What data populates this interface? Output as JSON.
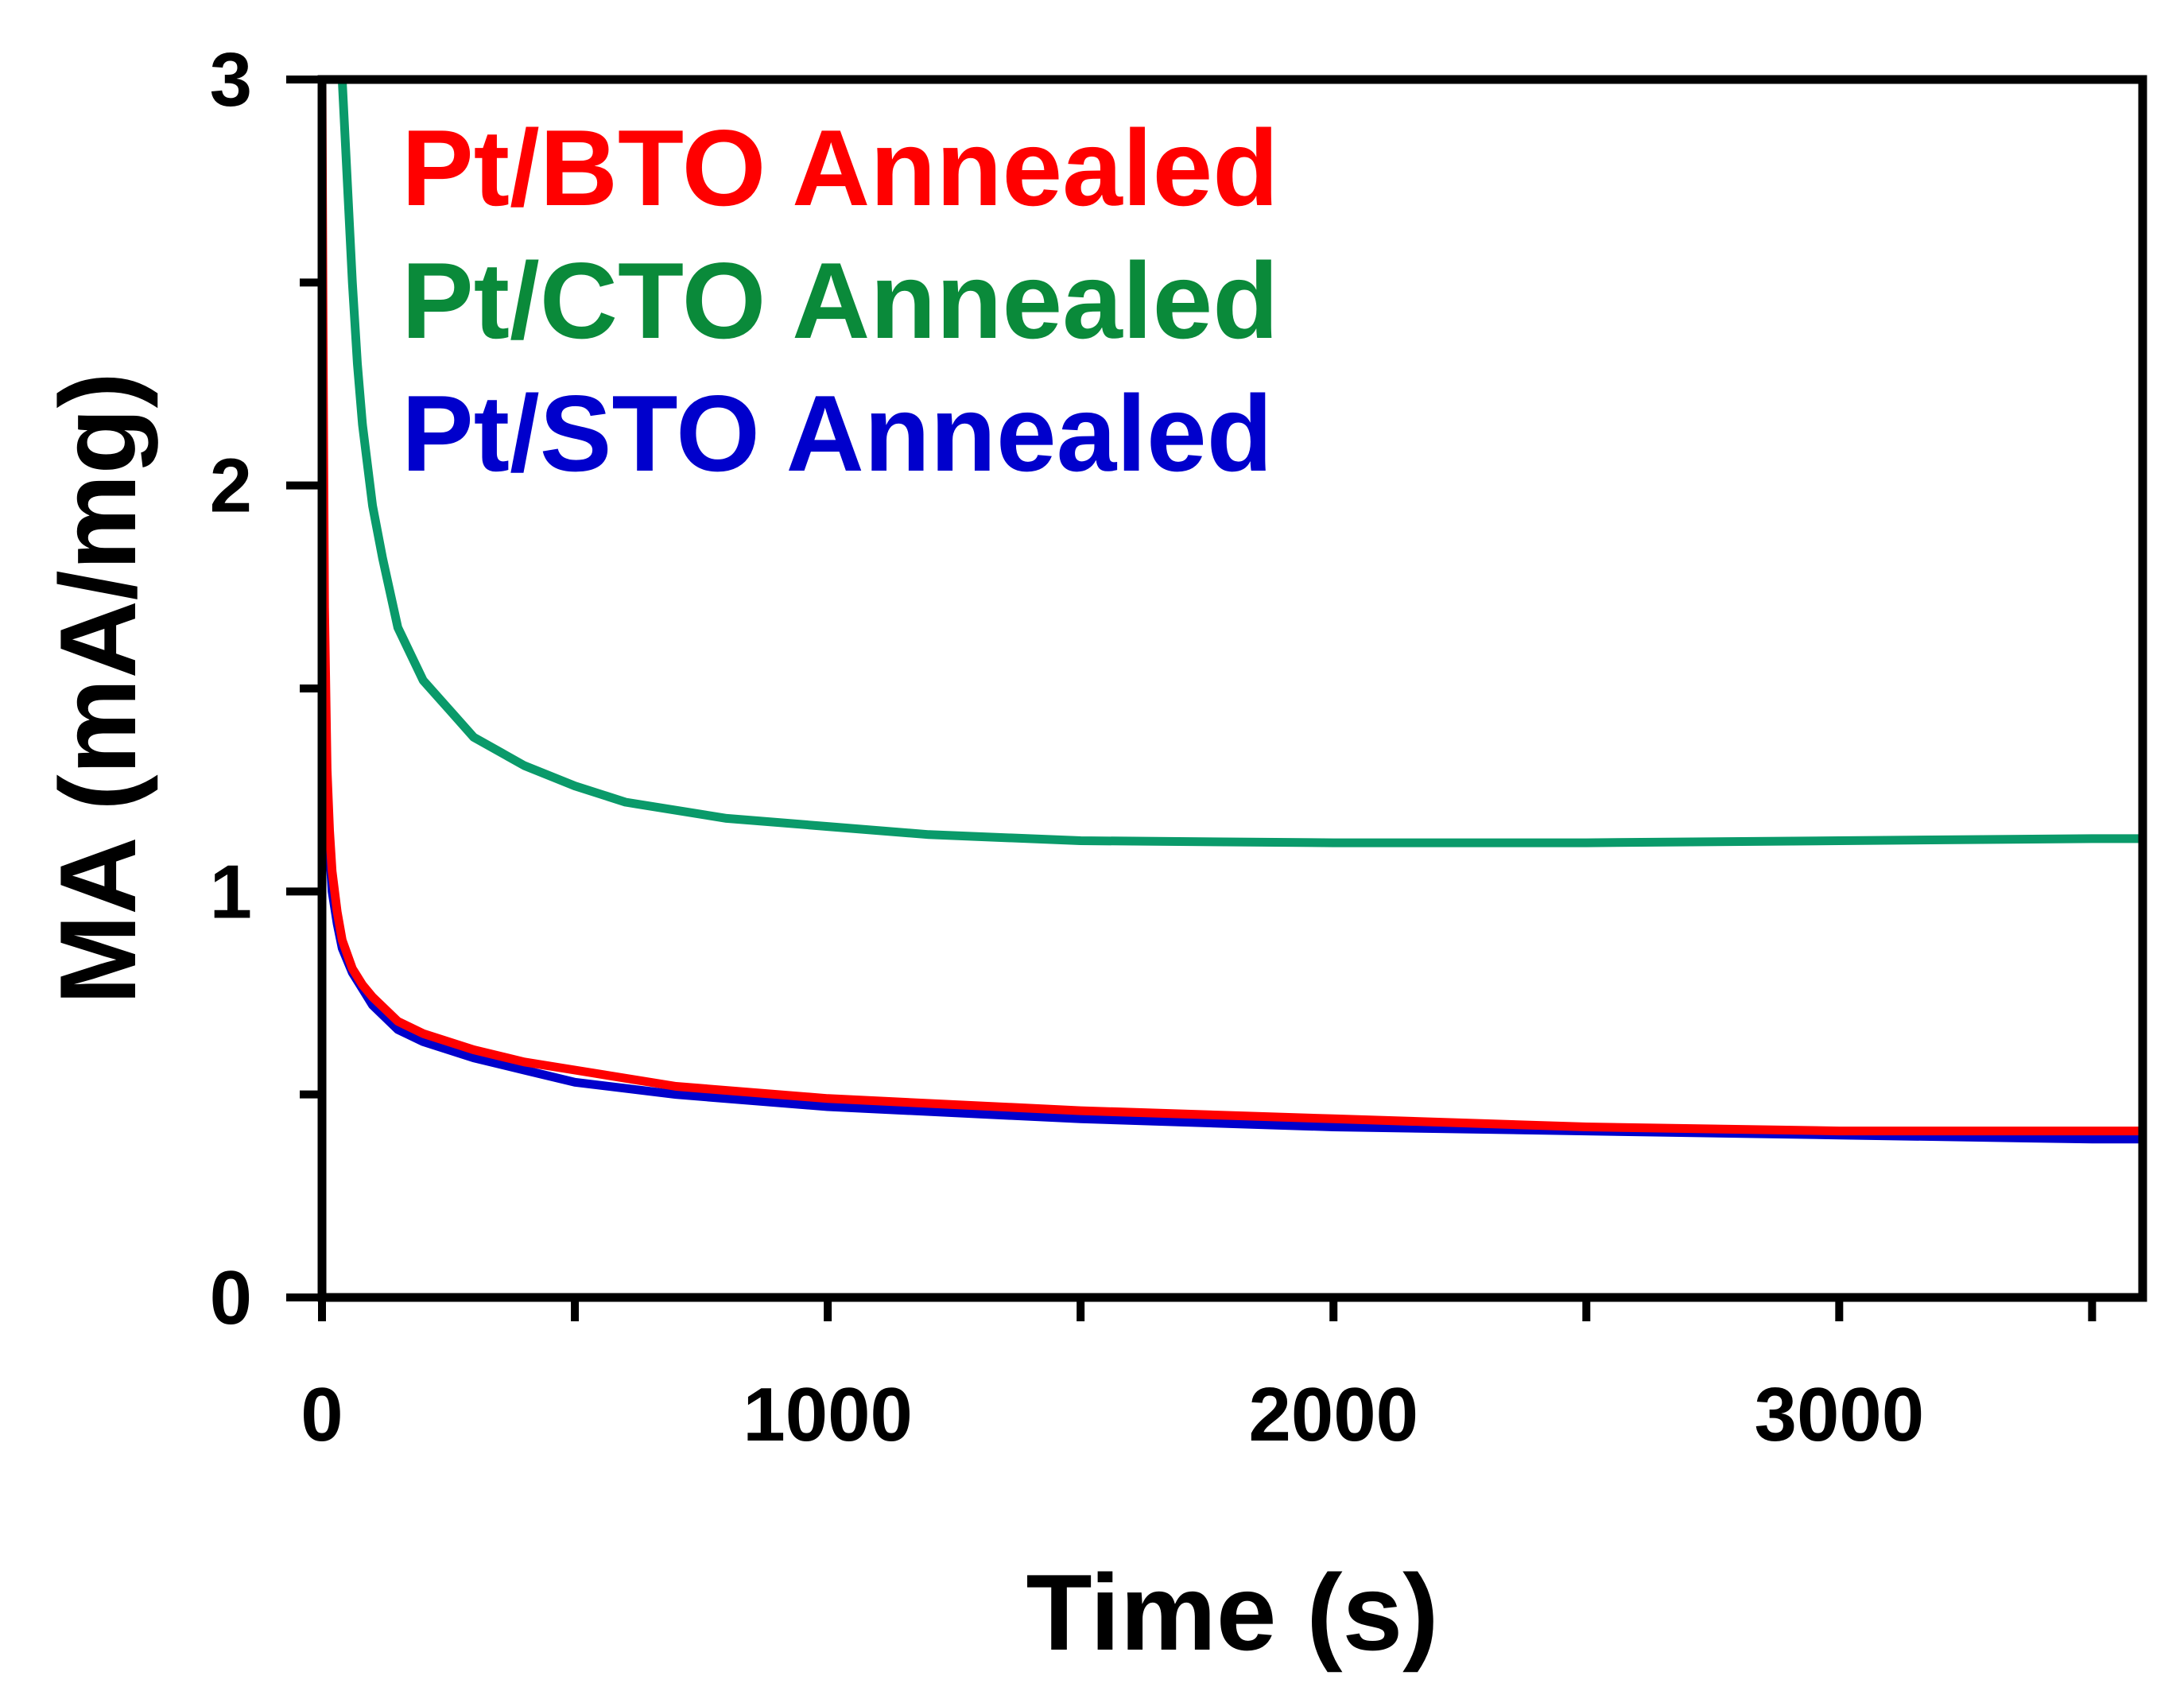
{
  "chart_data": {
    "type": "line",
    "title": "",
    "xlabel": "Time (s)",
    "ylabel": "MA (mA/mg)",
    "xlim": [
      0,
      3600
    ],
    "ylim": [
      0,
      3
    ],
    "x_ticks": [
      0,
      1000,
      2000,
      3000
    ],
    "x_minor_ticks": [
      500,
      1500,
      2500,
      3500
    ],
    "y_ticks": [
      0,
      1,
      2,
      3
    ],
    "y_minor_ticks": [
      0.5,
      1.5,
      2.5
    ],
    "grid": false,
    "legend_position": "top-left",
    "series": [
      {
        "name": "Pt/CTO Annealed",
        "color": "#0A9A6A",
        "x": [
          40,
          50,
          60,
          70,
          80,
          100,
          120,
          150,
          200,
          250,
          300,
          400,
          500,
          600,
          800,
          1000,
          1200,
          1500,
          2000,
          2500,
          3000,
          3500,
          3600
        ],
        "y": [
          3.0,
          2.75,
          2.5,
          2.3,
          2.15,
          1.95,
          1.82,
          1.65,
          1.52,
          1.45,
          1.38,
          1.31,
          1.26,
          1.22,
          1.18,
          1.16,
          1.14,
          1.125,
          1.12,
          1.12,
          1.125,
          1.13,
          1.13
        ]
      },
      {
        "name": "Pt/STO Annealed",
        "color": "#0000CC",
        "x": [
          0,
          5,
          10,
          15,
          20,
          30,
          40,
          60,
          80,
          100,
          150,
          200,
          300,
          400,
          500,
          700,
          1000,
          1500,
          2000,
          2500,
          3000,
          3500,
          3600
        ],
        "y": [
          2.6,
          1.6,
          1.25,
          1.1,
          1.0,
          0.92,
          0.86,
          0.8,
          0.76,
          0.72,
          0.66,
          0.63,
          0.59,
          0.56,
          0.53,
          0.5,
          0.47,
          0.44,
          0.42,
          0.41,
          0.4,
          0.39,
          0.39
        ]
      },
      {
        "name": "Pt/BTO Annealed",
        "color": "#FF0000",
        "x": [
          0,
          2,
          5,
          10,
          15,
          20,
          30,
          40,
          60,
          80,
          100,
          150,
          200,
          300,
          400,
          500,
          700,
          1000,
          1500,
          2000,
          2500,
          3000,
          3500,
          3600
        ],
        "y": [
          3.0,
          2.4,
          1.7,
          1.3,
          1.15,
          1.05,
          0.95,
          0.88,
          0.81,
          0.77,
          0.74,
          0.68,
          0.65,
          0.61,
          0.58,
          0.56,
          0.52,
          0.49,
          0.46,
          0.44,
          0.42,
          0.41,
          0.41,
          0.41
        ]
      }
    ],
    "legend": [
      {
        "label": "Pt/BTO Annealed",
        "color": "#FF0000"
      },
      {
        "label": "Pt/CTO Annealed",
        "color": "#0A8A3A"
      },
      {
        "label": "Pt/STO Annealed",
        "color": "#0000CC"
      }
    ]
  }
}
